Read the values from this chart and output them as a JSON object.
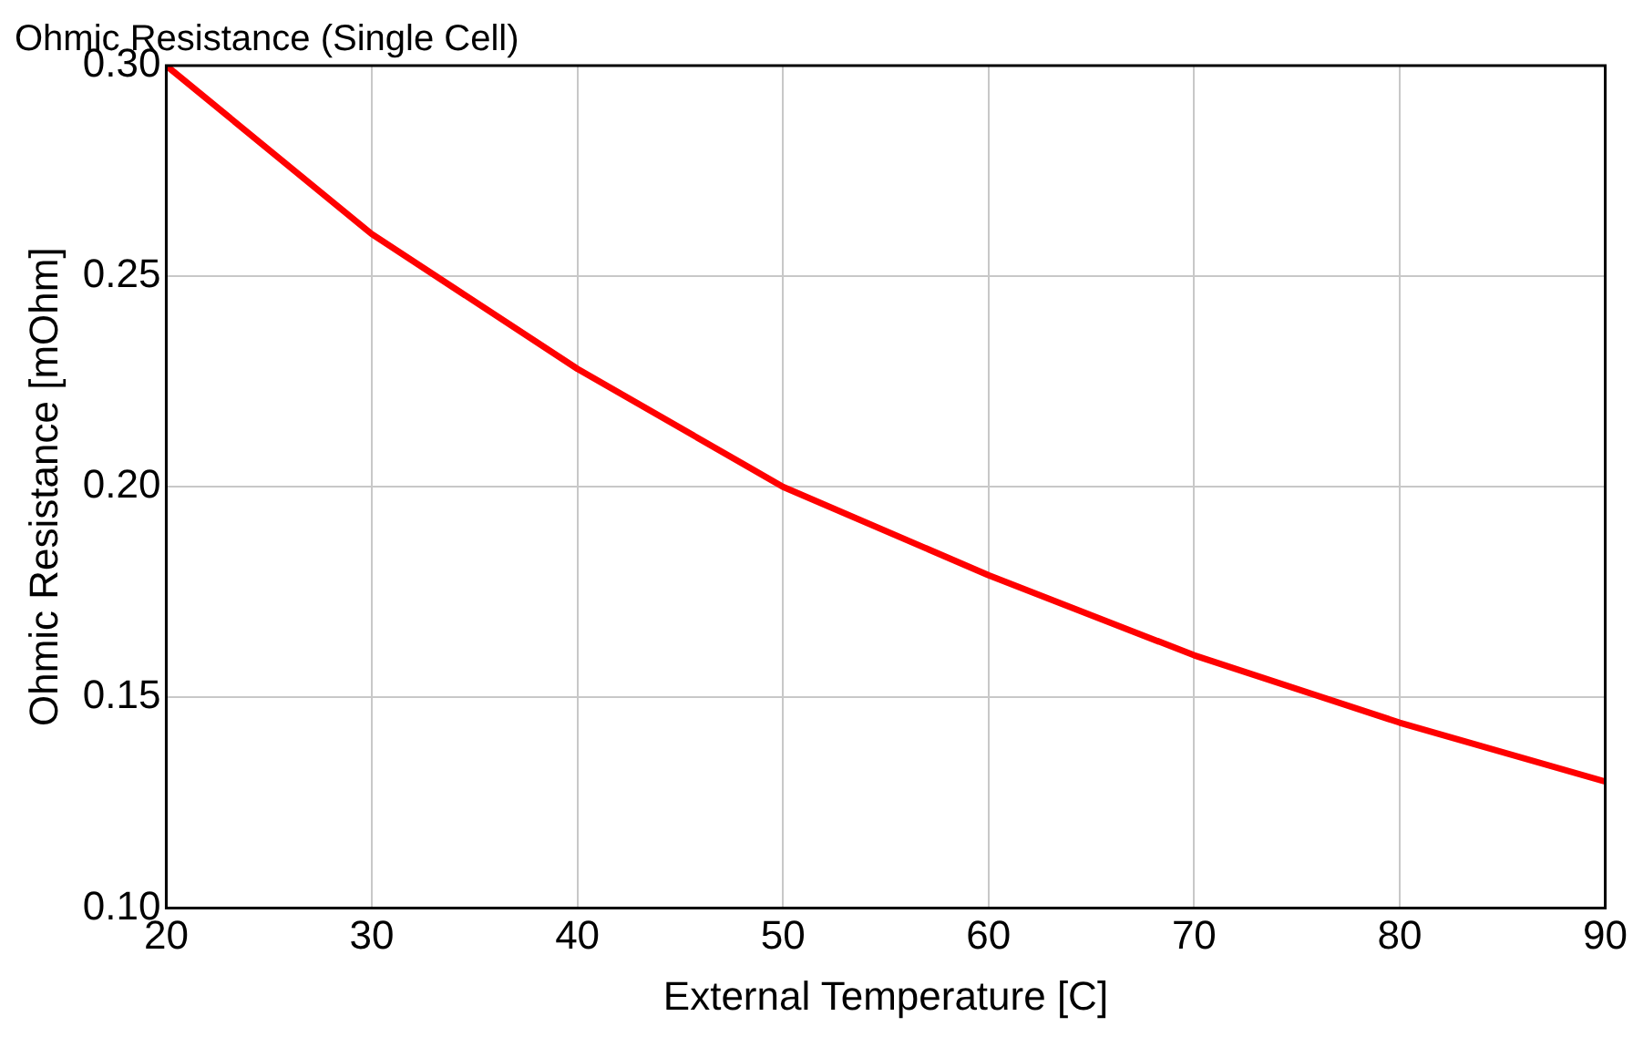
{
  "chart_data": {
    "type": "line",
    "title": "Ohmic Resistance (Single Cell)",
    "xlabel": "External Temperature [C]",
    "ylabel": "Ohmic Resistance [mOhm]",
    "x": [
      20,
      30,
      40,
      50,
      60,
      70,
      80,
      90
    ],
    "series": [
      {
        "color": "#ff0000",
        "values": [
          0.3,
          0.26,
          0.228,
          0.2,
          0.179,
          0.16,
          0.144,
          0.13
        ]
      }
    ],
    "xlim": [
      20,
      90
    ],
    "xticks": [
      20,
      30,
      40,
      50,
      60,
      70,
      80,
      90
    ],
    "ylim": [
      0.1,
      0.3
    ],
    "yticks": [
      {
        "value": 0.1,
        "label": "0.10"
      },
      0.15,
      {
        "value": 0.2,
        "label": "0.20"
      },
      0.25,
      {
        "value": 0.3,
        "label": "0.30"
      }
    ],
    "grid": true,
    "legend": false,
    "marker": "none",
    "line_style": "solid"
  }
}
